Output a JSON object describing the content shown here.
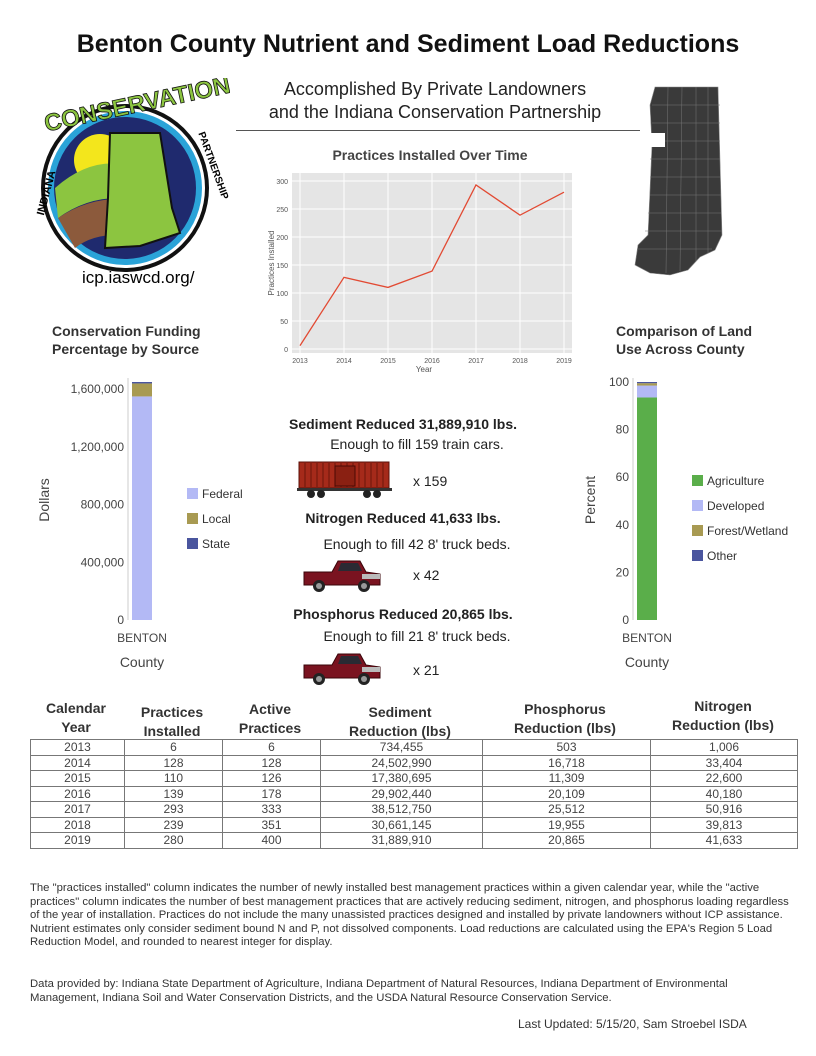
{
  "title": "Benton County Nutrient and Sediment Load Reductions",
  "subtitle_1": "Accomplished By Private Landowners",
  "subtitle_2": "and the Indiana Conservation Partnership",
  "logo": {
    "text": "INDIANA CONSERVATION PARTNERSHIP",
    "url": "icp.iaswcd.org/"
  },
  "line_chart": {
    "chart_data": {
      "type": "line",
      "title": "Practices Installed Over Time",
      "xlabel": "Year",
      "ylabel": "Practices Installed",
      "x": [
        2013,
        2014,
        2015,
        2016,
        2017,
        2018,
        2019
      ],
      "y": [
        6,
        128,
        110,
        139,
        293,
        239,
        280
      ],
      "ylim": [
        0,
        300
      ],
      "yticks": [
        0,
        50,
        100,
        150,
        200,
        250,
        300
      ],
      "grid": true,
      "color": "#e24a33"
    }
  },
  "funding_chart": {
    "chart_data": {
      "type": "bar",
      "stacked": true,
      "title": "Conservation Funding Percentage by Source",
      "xlabel": "County",
      "ylabel": "Dollars",
      "categories": [
        "BENTON"
      ],
      "yticks": [
        "0",
        "400,000",
        "800,000",
        "1,200,000",
        "1,600,000"
      ],
      "ylim": [
        0,
        1650000
      ],
      "legend": "right",
      "series": [
        {
          "name": "Federal",
          "values": [
            1550000
          ],
          "color": "#b3b9f5"
        },
        {
          "name": "Local",
          "values": [
            90000
          ],
          "color": "#a89a52"
        },
        {
          "name": "State",
          "values": [
            10000
          ],
          "color": "#4a559e"
        }
      ]
    }
  },
  "land_chart": {
    "chart_data": {
      "type": "bar",
      "stacked": true,
      "title": "Comparison of Land Use Across County",
      "xlabel": "County",
      "ylabel": "Percent",
      "categories": [
        "BENTON"
      ],
      "yticks": [
        "0",
        "20",
        "40",
        "60",
        "80",
        "100"
      ],
      "ylim": [
        0,
        100
      ],
      "legend": "right",
      "series": [
        {
          "name": "Agriculture",
          "values": [
            93.5
          ],
          "color": "#5aae4a"
        },
        {
          "name": "Developed",
          "values": [
            5
          ],
          "color": "#b3b9f5"
        },
        {
          "name": "Forest/Wetland",
          "values": [
            1
          ],
          "color": "#a89a52"
        },
        {
          "name": "Other",
          "values": [
            0.5
          ],
          "color": "#4a559e"
        }
      ]
    }
  },
  "stats": [
    {
      "headline": "Sediment Reduced 31,889,910 lbs.",
      "detail": "Enough to fill 159 train cars.",
      "multiplier": "x 159",
      "icon": "train-car-icon"
    },
    {
      "headline": "Nitrogen Reduced 41,633  lbs.",
      "detail": "Enough to fill 42 8' truck beds.",
      "multiplier": "x 42",
      "icon": "pickup-truck-icon"
    },
    {
      "headline": "Phosphorus Reduced 20,865  lbs.",
      "detail": "Enough to fill 21  8' truck beds.",
      "multiplier": "x 21",
      "icon": "pickup-truck-icon"
    }
  ],
  "table": {
    "headers": [
      [
        "Calendar",
        "Year"
      ],
      [
        "Practices",
        "Installed"
      ],
      [
        "Active",
        "Practices"
      ],
      [
        "Sediment",
        "Reduction (lbs)"
      ],
      [
        "Phosphorus",
        "Reduction (lbs)"
      ],
      [
        "Nitrogen",
        "Reduction (lbs)"
      ]
    ],
    "rows": [
      [
        "2013",
        "6",
        "6",
        "734,455",
        "503",
        "1,006"
      ],
      [
        "2014",
        "128",
        "128",
        "24,502,990",
        "16,718",
        "33,404"
      ],
      [
        "2015",
        "110",
        "126",
        "17,380,695",
        "11,309",
        "22,600"
      ],
      [
        "2016",
        "139",
        "178",
        "29,902,440",
        "20,109",
        "40,180"
      ],
      [
        "2017",
        "293",
        "333",
        "38,512,750",
        "25,512",
        "50,916"
      ],
      [
        "2018",
        "239",
        "351",
        "30,661,145",
        "19,955",
        "39,813"
      ],
      [
        "2019",
        "280",
        "400",
        "31,889,910",
        "20,865",
        "41,633"
      ]
    ]
  },
  "footnote": "The \"practices installed\" column indicates the number of newly installed best management practices within a given calendar year, while the \"active practices\" column indicates the number of best management practices that are actively reducing sediment, nitrogen, and phosphorus loading regardless of the year of installation.  Practices do not include the many unassisted practices designed and installed by private landowners without ICP assistance. Nutrient estimates only consider sediment bound N and P, not dissolved components. Load reductions are calculated using the EPA's Region 5 Load Reduction Model, and rounded to nearest integer for display.",
  "data_source": "Data provided by: Indiana State Department of Agriculture, Indiana Department of Natural Resources, Indiana Department of Environmental Management, Indiana Soil and Water Conservation Districts, and the USDA Natural Resource Conservation Service.",
  "updated": "Last Updated: 5/15/20, Sam Stroebel ISDA"
}
